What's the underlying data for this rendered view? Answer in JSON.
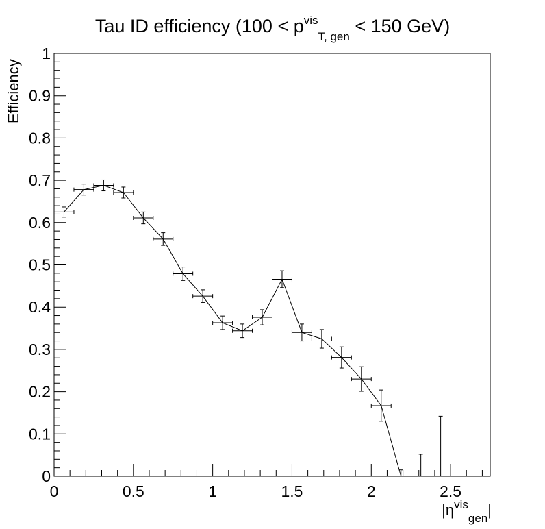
{
  "chart_data": {
    "type": "line",
    "title": {
      "prefix": "Tau ID efficiency (100 < p",
      "sup": "vis",
      "sub": "T, gen",
      "suffix": " < 150 GeV)"
    },
    "ylabel": "Efficiency",
    "xlabel": {
      "open": "|η",
      "sup": "vis",
      "sub": "gen",
      "close": "|"
    },
    "xlim": [
      0,
      2.75
    ],
    "ylim": [
      0,
      1
    ],
    "x_ticks": [
      "0",
      "0.5",
      "1",
      "1.5",
      "2",
      "2.5"
    ],
    "y_ticks": [
      "0",
      "0.1",
      "0.2",
      "0.3",
      "0.4",
      "0.5",
      "0.6",
      "0.7",
      "0.8",
      "0.9",
      "1"
    ],
    "grid": false,
    "series": [
      {
        "x": [
          0.0625,
          0.1875,
          0.3125,
          0.4375,
          0.5625,
          0.6875,
          0.8125,
          0.9375,
          1.0625,
          1.1875,
          1.3125,
          1.4375,
          1.5625,
          1.6875,
          1.8125,
          1.9375,
          2.0625,
          2.1875,
          2.3125,
          2.4375
        ],
        "y": [
          0.625,
          0.678,
          0.688,
          0.671,
          0.611,
          0.561,
          0.479,
          0.426,
          0.363,
          0.344,
          0.376,
          0.466,
          0.34,
          0.325,
          0.281,
          0.23,
          0.167,
          0.0,
          0.0,
          0.0
        ],
        "x_err": 0.0625,
        "y_err": [
          0.012,
          0.013,
          0.013,
          0.013,
          0.014,
          0.015,
          0.016,
          0.015,
          0.016,
          0.016,
          0.018,
          0.02,
          0.02,
          0.022,
          0.025,
          0.029,
          0.037,
          0.015,
          0.052,
          0.142
        ]
      }
    ]
  }
}
